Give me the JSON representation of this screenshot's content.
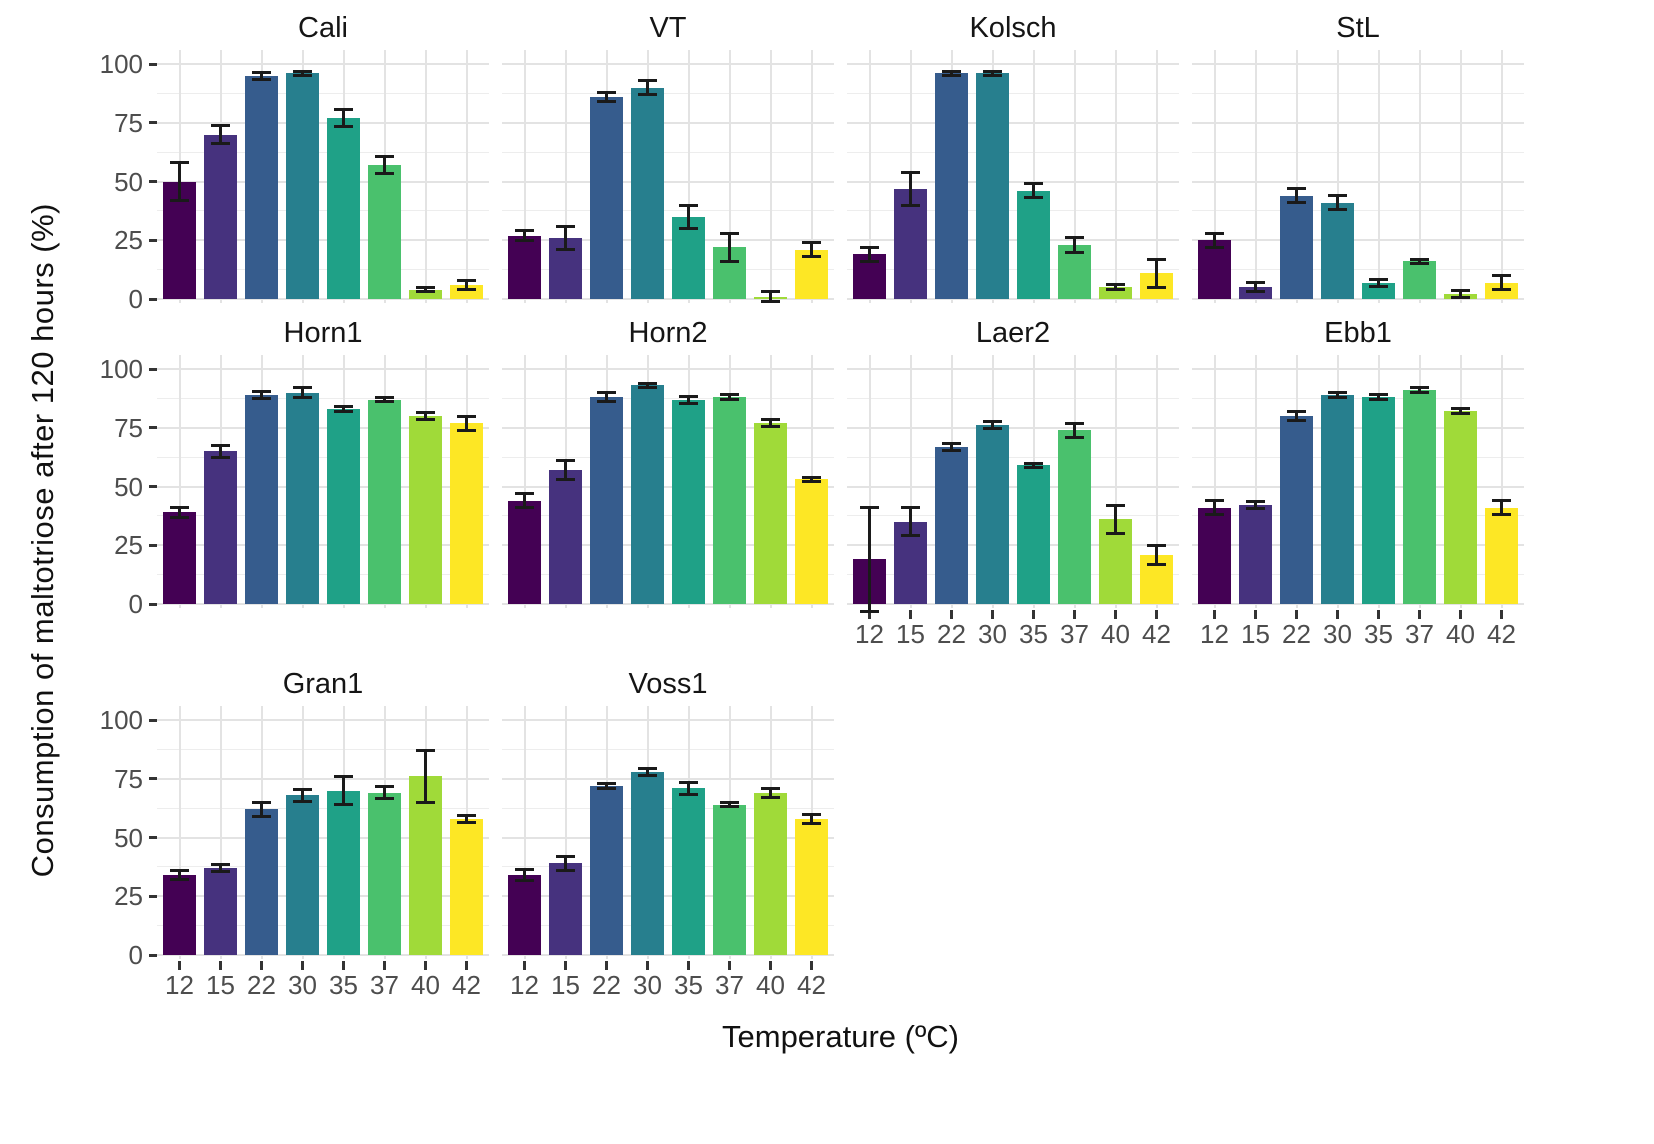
{
  "figure": {
    "x_axis_title": "Temperature (ºC)",
    "y_axis_title": "Consumption of maltotriose after 120 hours (%)"
  },
  "chart_data": {
    "type": "bar",
    "title": "",
    "xlabel": "Temperature (ºC)",
    "ylabel": "Consumption of maltotriose after 120 hours (%)",
    "categories": [
      "12",
      "15",
      "22",
      "30",
      "35",
      "37",
      "40",
      "42"
    ],
    "y_ticks": [
      0,
      25,
      50,
      75,
      100
    ],
    "ylim": [
      0,
      100
    ],
    "grid": true,
    "legend_position": "none",
    "facet_columns": 4,
    "bar_colors": [
      "#440154",
      "#46327e",
      "#365c8d",
      "#277f8e",
      "#1fa187",
      "#4ac16d",
      "#a0da39",
      "#fde725"
    ],
    "error_bar_color": "#1a1a1a",
    "facets": [
      {
        "name": "Cali",
        "values": [
          50,
          70,
          95,
          96,
          77,
          57,
          4,
          6
        ],
        "errors": [
          8,
          4,
          1.5,
          1,
          3.5,
          3.5,
          1,
          2
        ]
      },
      {
        "name": "VT",
        "values": [
          27,
          26,
          86,
          90,
          35,
          22,
          1,
          21
        ],
        "errors": [
          2,
          5,
          2,
          3,
          5,
          6,
          2,
          3
        ]
      },
      {
        "name": "Kolsch",
        "values": [
          19,
          47,
          96,
          96,
          46,
          23,
          5,
          11
        ],
        "errors": [
          3,
          7,
          1,
          1,
          3,
          3,
          1,
          6
        ]
      },
      {
        "name": "StL",
        "values": [
          25,
          5,
          44,
          41,
          7,
          16,
          2,
          7
        ],
        "errors": [
          3,
          2,
          3,
          3,
          1.5,
          1,
          1.5,
          3
        ]
      },
      {
        "name": "Horn1",
        "values": [
          39,
          65,
          89,
          90,
          83,
          87,
          80,
          77
        ],
        "errors": [
          2,
          2.5,
          1.5,
          2,
          1,
          1,
          1.5,
          3
        ]
      },
      {
        "name": "Horn2",
        "values": [
          44,
          57,
          88,
          93,
          87,
          88,
          77,
          53
        ],
        "errors": [
          3,
          4,
          2,
          1,
          1.5,
          1,
          1.5,
          1
        ]
      },
      {
        "name": "Laer2",
        "values": [
          19,
          35,
          67,
          76,
          59,
          74,
          36,
          21
        ],
        "errors": [
          22,
          6,
          1.5,
          1.5,
          1,
          3,
          6,
          4
        ]
      },
      {
        "name": "Ebb1",
        "values": [
          41,
          42,
          80,
          89,
          88,
          91,
          82,
          41
        ],
        "errors": [
          3,
          1.5,
          2,
          1,
          1,
          1,
          1,
          3
        ]
      },
      {
        "name": "Gran1",
        "values": [
          34,
          37,
          62,
          68,
          70,
          69,
          76,
          58
        ],
        "errors": [
          2,
          1.5,
          3,
          2.5,
          6,
          2.5,
          11,
          1.5
        ]
      },
      {
        "name": "Voss1",
        "values": [
          34,
          39,
          72,
          78,
          71,
          64,
          69,
          58
        ],
        "errors": [
          2.5,
          3,
          1,
          1.5,
          2.5,
          1,
          2,
          2
        ]
      }
    ],
    "x_axis_facets": [
      "Laer2",
      "Ebb1",
      "Gran1",
      "Voss1"
    ],
    "y_axis_facets": [
      "Cali",
      "Horn1",
      "Gran1"
    ]
  }
}
